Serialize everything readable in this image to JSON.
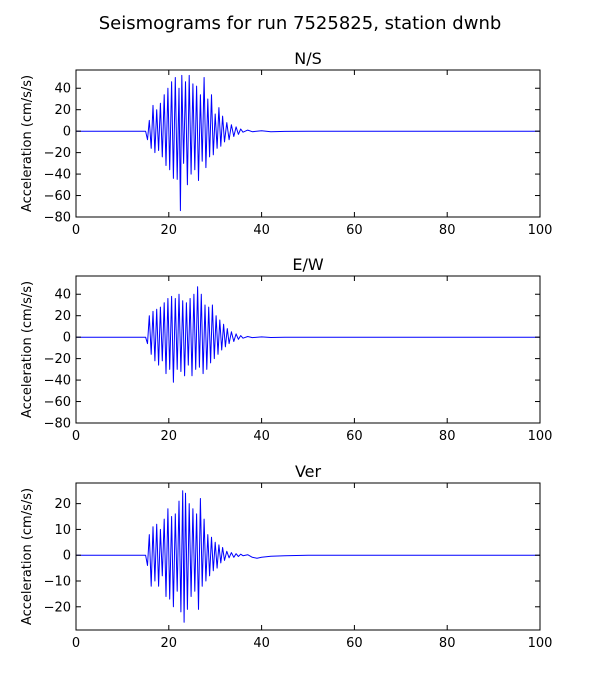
{
  "title": "Seismograms for run 7525825, station dwnb",
  "colors": {
    "trace": "#0000ff",
    "axes": "#000000",
    "background": "#ffffff"
  },
  "chart_data": [
    {
      "type": "line",
      "title": "N/S",
      "xlabel": "",
      "ylabel": "Acceleration (cm/s/s)",
      "xlim": [
        0,
        100
      ],
      "ylim": [
        -80,
        57
      ],
      "xticks": [
        0,
        20,
        40,
        60,
        80,
        100
      ],
      "yticks": [
        -80,
        -60,
        -40,
        -20,
        0,
        20,
        40
      ],
      "grid": false,
      "series": [
        {
          "color": "#0000ff",
          "x": [
            0,
            15.0,
            15.4,
            15.8,
            16.2,
            16.6,
            17.0,
            17.4,
            17.8,
            18.2,
            18.6,
            19.0,
            19.4,
            19.8,
            20.2,
            20.6,
            21.0,
            21.4,
            21.8,
            22.2,
            22.5,
            22.8,
            23.2,
            23.6,
            24.0,
            24.4,
            24.8,
            25.2,
            25.6,
            26.0,
            26.4,
            26.8,
            27.2,
            27.6,
            28.0,
            28.4,
            28.8,
            29.2,
            29.6,
            30.0,
            30.4,
            30.8,
            31.2,
            31.6,
            32.0,
            32.5,
            33.0,
            33.5,
            34.0,
            34.5,
            35.0,
            35.5,
            36.0,
            37.0,
            38.0,
            40.0,
            42.0,
            45.0,
            50.0,
            60.0,
            70.0,
            80.0,
            90.0,
            100.0
          ],
          "y": [
            0,
            0,
            -8,
            10,
            -16,
            24,
            -20,
            20,
            -18,
            26,
            -24,
            34,
            -32,
            40,
            -36,
            46,
            -44,
            50,
            -45,
            40,
            -74,
            52,
            -30,
            46,
            -50,
            52,
            -40,
            44,
            -36,
            42,
            -46,
            34,
            -28,
            50,
            -34,
            30,
            -24,
            34,
            -22,
            16,
            -16,
            22,
            -14,
            14,
            -10,
            8,
            -8,
            6,
            -5,
            4,
            -3,
            2,
            -1,
            1,
            -0.5,
            0.3,
            -0.5,
            -0.2,
            0,
            0,
            0,
            0,
            0,
            0
          ]
        }
      ]
    },
    {
      "type": "line",
      "title": "E/W",
      "xlabel": "",
      "ylabel": "Acceleration (cm/s/s)",
      "xlim": [
        0,
        100
      ],
      "ylim": [
        -80,
        57
      ],
      "xticks": [
        0,
        20,
        40,
        60,
        80,
        100
      ],
      "yticks": [
        -80,
        -60,
        -40,
        -20,
        0,
        20,
        40
      ],
      "grid": false,
      "series": [
        {
          "color": "#0000ff",
          "x": [
            0,
            15.0,
            15.4,
            15.8,
            16.2,
            16.6,
            17.0,
            17.4,
            17.8,
            18.2,
            18.6,
            19.0,
            19.4,
            19.8,
            20.2,
            20.6,
            21.0,
            21.4,
            21.8,
            22.2,
            22.6,
            23.0,
            23.4,
            23.8,
            24.2,
            24.6,
            25.0,
            25.4,
            25.8,
            26.2,
            26.6,
            27.0,
            27.4,
            27.8,
            28.2,
            28.6,
            29.0,
            29.4,
            29.8,
            30.2,
            30.6,
            31.0,
            31.4,
            31.8,
            32.2,
            32.6,
            33.0,
            33.5,
            34.0,
            34.5,
            35.0,
            35.5,
            36.0,
            37.0,
            38.0,
            40.0,
            42.0,
            45.0,
            50.0,
            60.0,
            70.0,
            80.0,
            90.0,
            100.0
          ],
          "y": [
            0,
            0,
            -6,
            20,
            -16,
            24,
            -22,
            26,
            -26,
            28,
            -22,
            32,
            -34,
            36,
            -30,
            38,
            -42,
            36,
            -30,
            40,
            -32,
            34,
            -36,
            32,
            -26,
            36,
            -36,
            40,
            -30,
            47,
            -28,
            40,
            -34,
            30,
            -30,
            28,
            -24,
            30,
            -20,
            20,
            -16,
            16,
            -12,
            12,
            -9,
            8,
            -6,
            5,
            -4,
            3,
            -2,
            1.5,
            -1,
            0.6,
            -0.4,
            0.2,
            -0.3,
            -0.1,
            0,
            0,
            0,
            0,
            0,
            0
          ]
        }
      ]
    },
    {
      "type": "line",
      "title": "Ver",
      "xlabel": "",
      "ylabel": "Acceleration (cm/s/s)",
      "xlim": [
        0,
        100
      ],
      "ylim": [
        -29,
        28
      ],
      "xticks": [
        0,
        20,
        40,
        60,
        80,
        100
      ],
      "yticks": [
        -20,
        -10,
        0,
        10,
        20
      ],
      "grid": false,
      "series": [
        {
          "color": "#0000ff",
          "x": [
            0,
            15.0,
            15.4,
            15.8,
            16.2,
            16.6,
            17.0,
            17.4,
            17.8,
            18.2,
            18.6,
            19.0,
            19.4,
            19.8,
            20.2,
            20.6,
            21.0,
            21.4,
            21.8,
            22.2,
            22.6,
            23.0,
            23.3,
            23.6,
            24.0,
            24.4,
            24.8,
            25.2,
            25.6,
            26.0,
            26.4,
            26.8,
            27.2,
            27.6,
            28.0,
            28.4,
            28.8,
            29.2,
            29.6,
            30.0,
            30.4,
            30.8,
            31.2,
            31.6,
            32.0,
            32.5,
            33.0,
            33.5,
            34.0,
            34.5,
            35.0,
            35.5,
            36.0,
            37.0,
            38.0,
            39.0,
            40.0,
            42.0,
            45.0,
            50.0,
            60.0,
            70.0,
            80.0,
            90.0,
            100.0
          ],
          "y": [
            0,
            0,
            -4,
            8,
            -12,
            11,
            -10,
            12,
            -12,
            10,
            -8,
            14,
            -16,
            18,
            -17,
            15,
            -20,
            16,
            -14,
            21,
            -22,
            25,
            -26,
            24,
            -21,
            20,
            -16,
            18,
            -14,
            16,
            -21,
            22,
            -12,
            14,
            -10,
            8,
            -8,
            7,
            -6,
            5,
            -5,
            4,
            -3,
            3,
            -2,
            1.5,
            -1,
            1,
            -0.8,
            0.6,
            -0.5,
            0.4,
            -0.2,
            0.2,
            -0.8,
            -1.2,
            -0.8,
            -0.4,
            -0.2,
            0,
            0,
            0,
            0,
            0,
            0
          ]
        }
      ]
    }
  ]
}
